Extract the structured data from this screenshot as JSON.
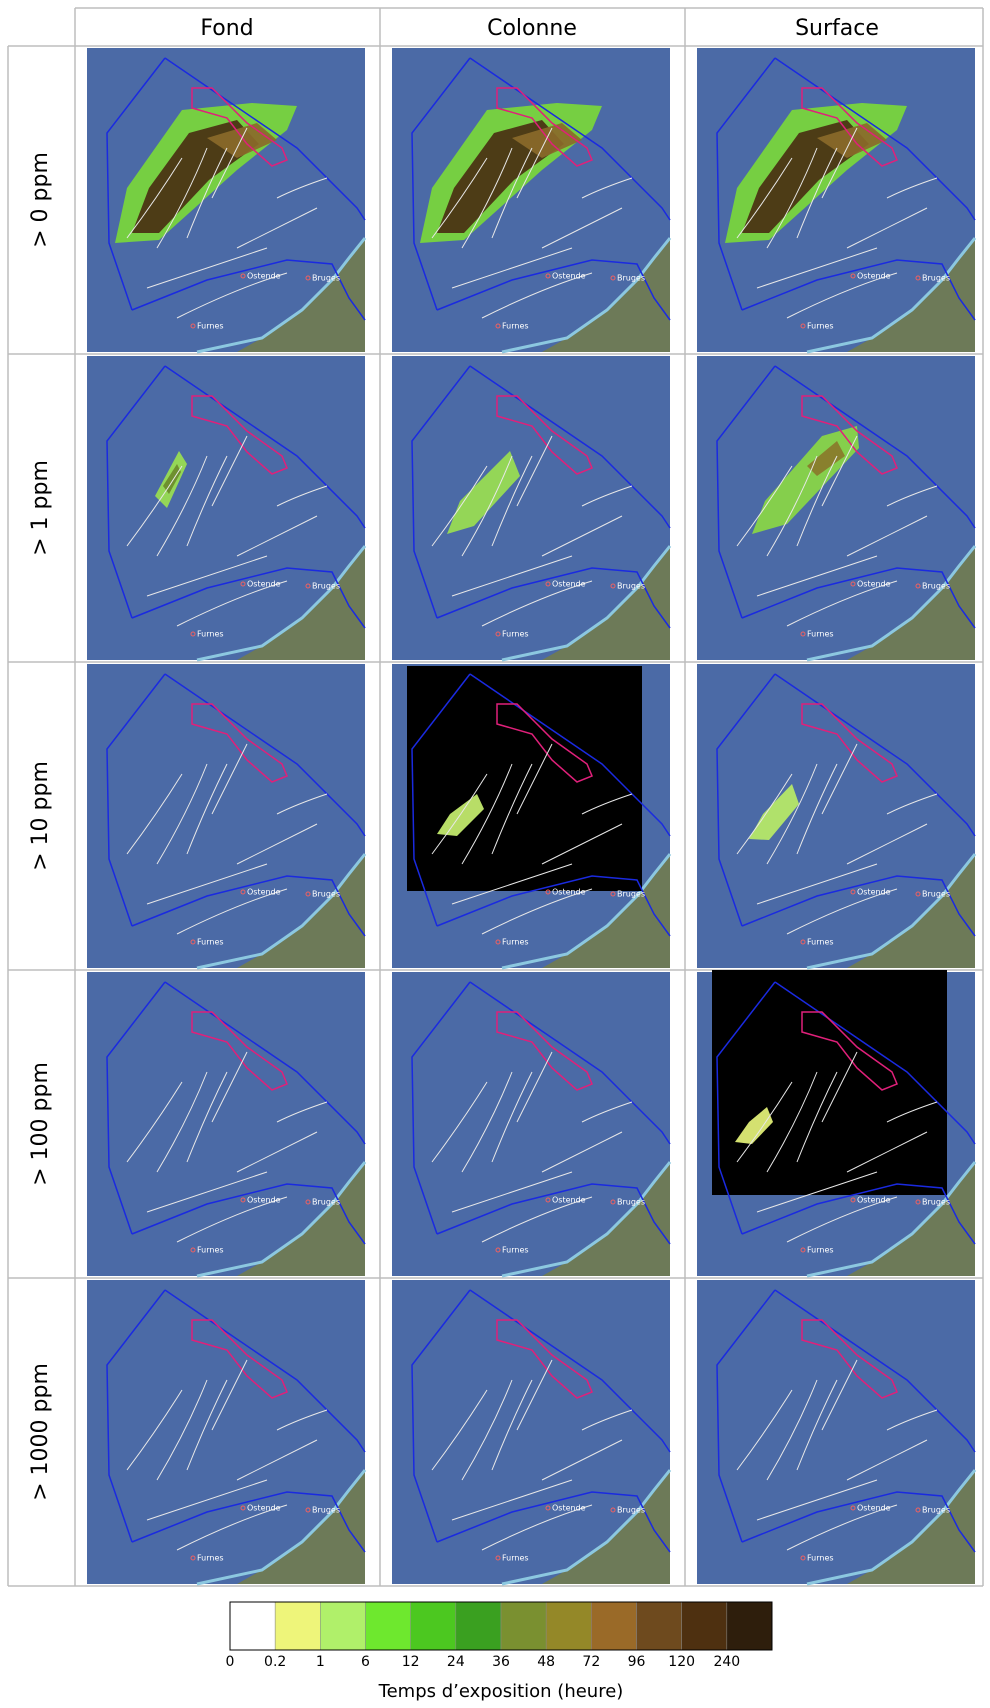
{
  "table": {
    "columns": [
      "Fond",
      "Colonne",
      "Surface"
    ],
    "rows": [
      "> 0 ppm",
      "> 1 ppm",
      "> 10 ppm",
      "> 100 ppm",
      "> 1000 ppm"
    ]
  },
  "map_labels": [
    "Ostende",
    "Bruges",
    "Furnes"
  ],
  "legend": {
    "title": "Temps d’exposition (heure)",
    "ticks": [
      0,
      0.2,
      1,
      6,
      12,
      24,
      36,
      48,
      72,
      96,
      120,
      240
    ],
    "colors": [
      "#ffffff",
      "#eef57a",
      "#b0f06a",
      "#6ee82e",
      "#4cc820",
      "#3aa020",
      "#7a9030",
      "#948828",
      "#9a6a28",
      "#6e4a1e",
      "#4e3010",
      "#2e1e0c"
    ]
  }
}
